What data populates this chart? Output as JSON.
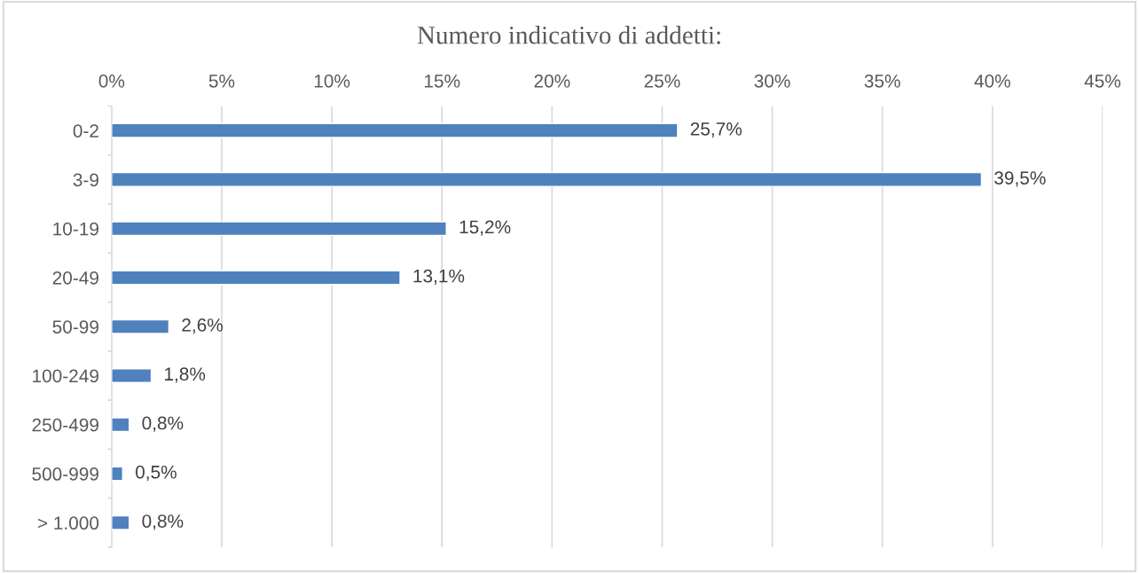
{
  "chart_data": {
    "type": "bar",
    "orientation": "horizontal",
    "title": "Numero indicativo di addetti:",
    "categories": [
      "0-2",
      "3-9",
      "10-19",
      "20-49",
      "50-99",
      "100-249",
      "250-499",
      "500-999",
      "> 1.000"
    ],
    "values": [
      25.7,
      39.5,
      15.2,
      13.1,
      2.6,
      1.8,
      0.8,
      0.5,
      0.8
    ],
    "value_labels": [
      "25,7%",
      "39,5%",
      "15,2%",
      "13,1%",
      "2,6%",
      "1,8%",
      "0,8%",
      "0,5%",
      "0,8%"
    ],
    "color": "#4f81bd",
    "xlim": [
      0,
      45
    ],
    "xticks": [
      {
        "value": 0,
        "label": "0%"
      },
      {
        "value": 5,
        "label": "5%"
      },
      {
        "value": 10,
        "label": "10%"
      },
      {
        "value": 15,
        "label": "15%"
      },
      {
        "value": 20,
        "label": "20%"
      },
      {
        "value": 25,
        "label": "25%"
      },
      {
        "value": 30,
        "label": "30%"
      },
      {
        "value": 35,
        "label": "35%"
      },
      {
        "value": 40,
        "label": "40%"
      },
      {
        "value": 45,
        "label": "45%"
      }
    ],
    "grid": "x",
    "legend": false
  }
}
